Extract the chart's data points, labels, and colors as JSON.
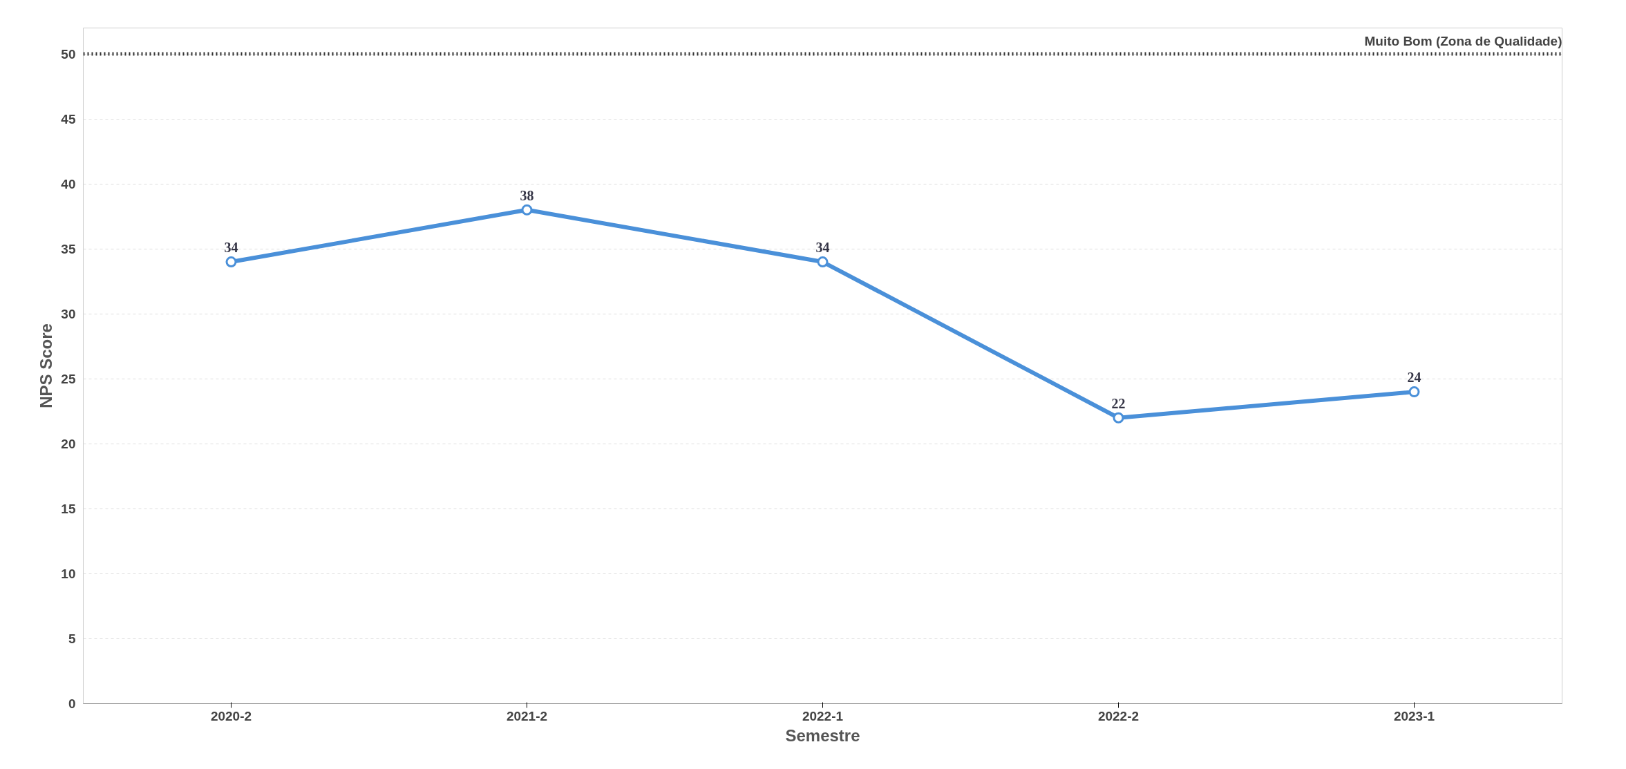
{
  "chart_data": {
    "type": "line",
    "xlabel": "Semestre",
    "ylabel": "NPS Score",
    "categories": [
      "2020-2",
      "2021-2",
      "2022-1",
      "2022-2",
      "2023-1"
    ],
    "series": [
      {
        "color": "#4a90d9",
        "values": [
          34,
          38,
          34,
          22,
          24
        ]
      }
    ],
    "ylim": [
      0,
      52
    ],
    "yticks": [
      0,
      5,
      10,
      15,
      20,
      25,
      30,
      35,
      40,
      45,
      50
    ],
    "grid": "y",
    "marker": "circle",
    "line_style": "solid",
    "data_labels": true,
    "ref_lines": [
      {
        "axis": "y",
        "value": 50,
        "label": "Muito Bom (Zona de Qualidade)",
        "color": "#333333",
        "line_style": "dotted"
      }
    ]
  }
}
